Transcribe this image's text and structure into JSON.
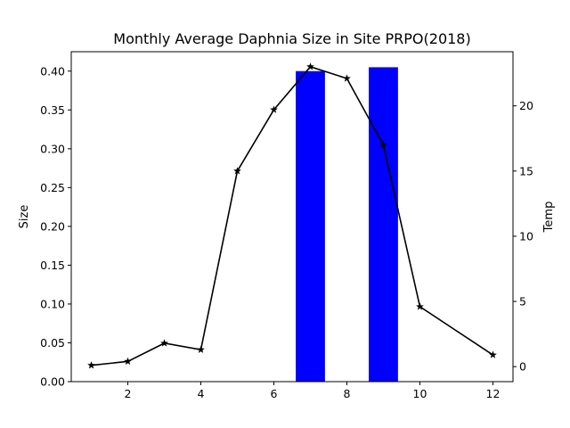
{
  "chart_data": {
    "type": "bar+line",
    "title": "Monthly Average Daphnia Size in Site PRPO(2018)",
    "xlabel": "",
    "ylabel_left": "Size",
    "ylabel_right": "Temp",
    "xlim": [
      0.45,
      12.55
    ],
    "ylim_left": [
      0,
      0.425
    ],
    "ylim_right": [
      -1.15,
      24.15
    ],
    "x_ticks": [
      2,
      4,
      6,
      8,
      10,
      12
    ],
    "y_left_ticks": [
      "0.00",
      "0.05",
      "0.10",
      "0.15",
      "0.20",
      "0.25",
      "0.30",
      "0.35",
      "0.40"
    ],
    "y_right_ticks": [
      "0",
      "5",
      "10",
      "15",
      "20"
    ],
    "grid": false,
    "legend": "none",
    "bar_series": {
      "axis": "left",
      "color": "#0000ff",
      "bar_width": 0.8,
      "x": [
        7,
        9
      ],
      "values": [
        0.4,
        0.405
      ]
    },
    "line_series": {
      "axis": "right",
      "color": "#000000",
      "marker": "star",
      "x": [
        1,
        2,
        3,
        4,
        5,
        6,
        7,
        8,
        9,
        10,
        12
      ],
      "values": [
        0.1,
        0.4,
        1.8,
        1.3,
        15.0,
        19.7,
        23.0,
        22.1,
        17.0,
        4.6,
        0.9
      ]
    }
  }
}
